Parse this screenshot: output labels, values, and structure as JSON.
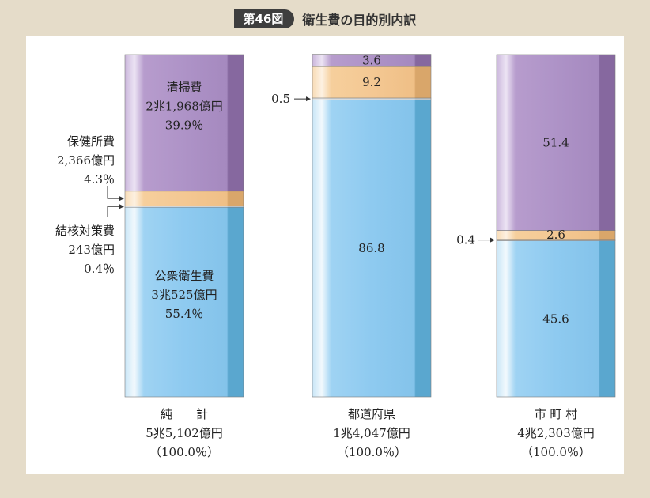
{
  "header": {
    "figure_number": "第46図",
    "title": "衛生費の目的別内訳"
  },
  "colors": {
    "purple": "#ae93c7",
    "orange": "#f4c893",
    "blue": "#8ecaf0"
  },
  "chart_data": {
    "type": "bar",
    "stacked": true,
    "unit": "%",
    "ylim": [
      0,
      100
    ],
    "categories": [
      "純　　計",
      "都道府県",
      "市 町 村"
    ],
    "category_subtitles": [
      "5兆5,102億円",
      "1兆4,047億円",
      "4兆2,303億円"
    ],
    "category_totals": [
      "（100.0％）",
      "（100.0％）",
      "（100.0％）"
    ],
    "series": [
      {
        "key": "public_health",
        "color": "#8ecaf0",
        "values": [
          55.4,
          86.8,
          45.6
        ]
      },
      {
        "key": "tuberculosis",
        "color": "#e9eef0",
        "values": [
          0.4,
          0.5,
          0.4
        ]
      },
      {
        "key": "health_center",
        "color": "#f4c893",
        "values": [
          4.3,
          9.2,
          2.6
        ]
      },
      {
        "key": "cleaning",
        "color": "#ae93c7",
        "values": [
          39.9,
          3.6,
          51.4
        ]
      }
    ],
    "labels": {
      "net_public_health": [
        "公衆衛生費",
        "3兆525億円",
        "55.4％"
      ],
      "net_cleaning": [
        "清掃費",
        "2兆1,968億円",
        "39.9％"
      ],
      "net_health_center": [
        "保健所費",
        "2,366億円",
        "4.3％"
      ],
      "net_tuberculosis": [
        "結核対策費",
        "243億円",
        "0.4％"
      ],
      "pref_public_health": "86.8",
      "pref_health_center": "9.2",
      "pref_cleaning": "3.6",
      "pref_tuberculosis": "0.5",
      "muni_public_health": "45.6",
      "muni_health_center": "2.6",
      "muni_cleaning": "51.4",
      "muni_tuberculosis": "0.4"
    }
  }
}
